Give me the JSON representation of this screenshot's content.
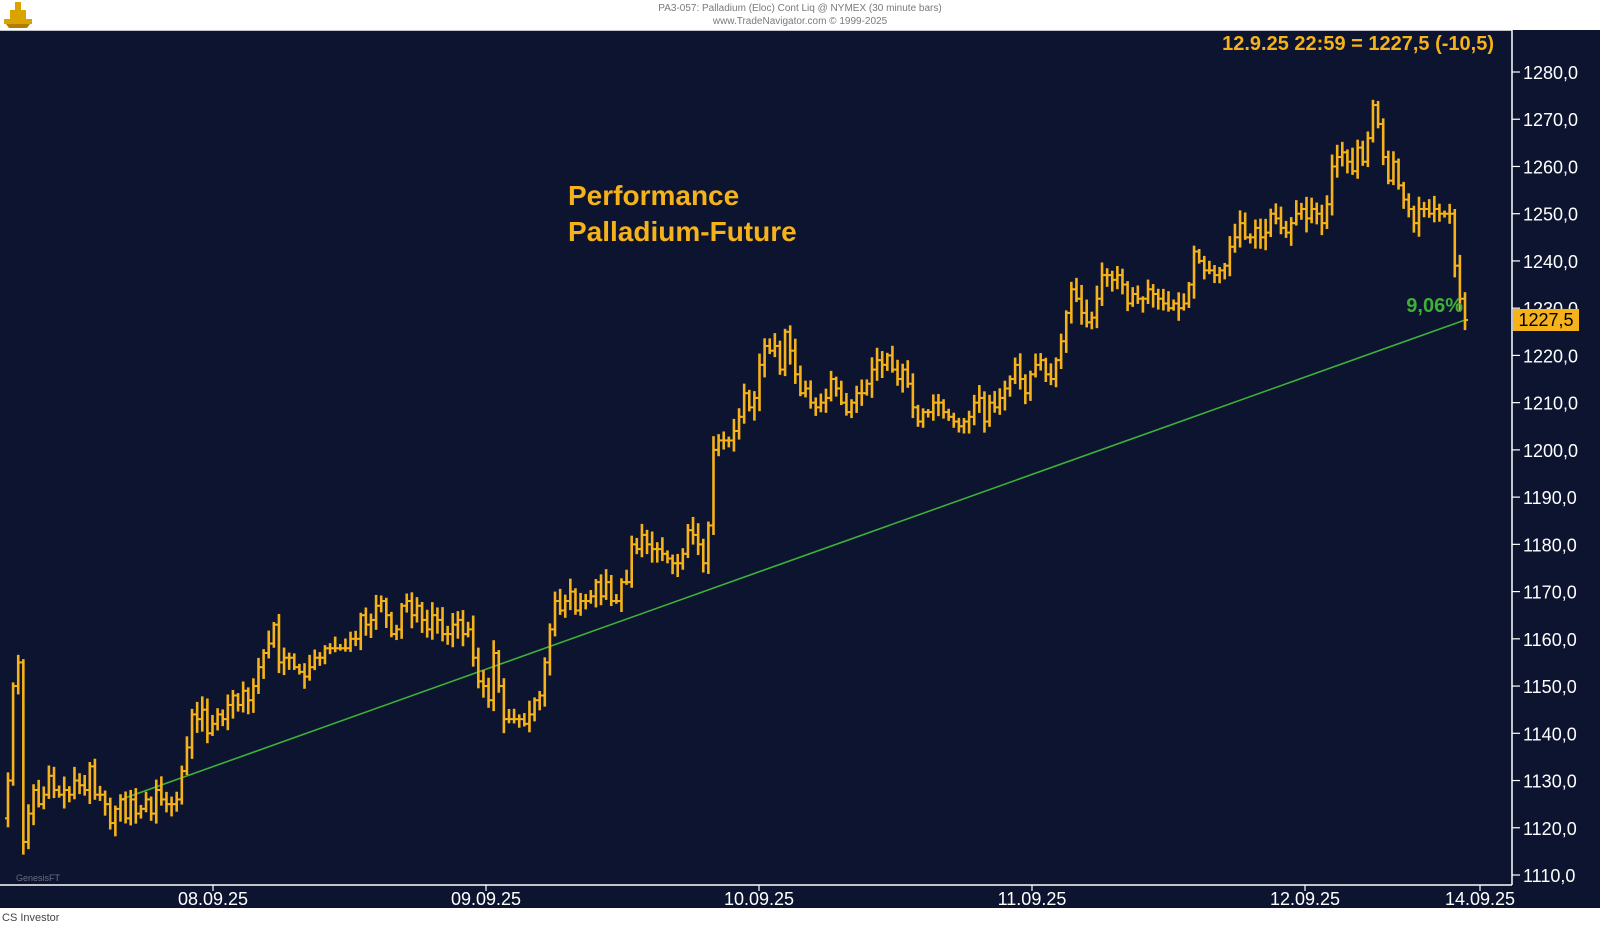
{
  "header": {
    "line1": "PA3-057:  Palladium (Eloc) Cont Liq @ NYMEX  (30 minute bars)",
    "line2": "www.TradeNavigator.com © 1999-2025"
  },
  "footer": {
    "left": "CS Investor"
  },
  "watermark": "GenesisFT",
  "colors": {
    "background": "#0d1430",
    "bars": "#f5b21a",
    "trend": "#3cb039",
    "axis": "#ffffff",
    "price_tag": "#f5b21a"
  },
  "chart_data": {
    "type": "ohlc",
    "title": "Performance",
    "subtitle": "Palladium-Future",
    "quote": "12.9.25 22:59 = 1227,5 (-10,5)",
    "last_price": "1227,5",
    "ylim": [
      1110,
      1290
    ],
    "yticks": [
      1110,
      1120,
      1130,
      1140,
      1150,
      1160,
      1170,
      1180,
      1190,
      1200,
      1210,
      1220,
      1230,
      1240,
      1250,
      1260,
      1270,
      1280
    ],
    "ytick_labels": [
      "1110,0",
      "1120,0",
      "1130,0",
      "1140,0",
      "1150,0",
      "1160,0",
      "1170,0",
      "1180,0",
      "1190,0",
      "1200,0",
      "1210,0",
      "1220,0",
      "1230,0",
      "1240,0",
      "1250,0",
      "1260,0",
      "1270,0",
      "1280,0"
    ],
    "xticks": [
      "08.09.25",
      "09.09.25",
      "10.09.25",
      "11.09.25",
      "12.09.25",
      "14.09.25"
    ],
    "trendline": {
      "from": {
        "date": "08.09.25",
        "value": 1126
      },
      "to": {
        "date": "12.09.25",
        "value": 1227.5
      },
      "label": "9,06%"
    },
    "series": [
      {
        "values": [
          1130,
          1150,
          1155,
          1117,
          1123,
          1128,
          1125,
          1127,
          1131,
          1128,
          1127,
          1128,
          1127,
          1130,
          1129,
          1128,
          1133,
          1127,
          1127,
          1125,
          1121,
          1124,
          1126,
          1122,
          1126,
          1123,
          1124,
          1126,
          1123,
          1128,
          1126,
          1125,
          1125,
          1126,
          1132,
          1137,
          1144,
          1143,
          1145,
          1140,
          1142,
          1144,
          1143,
          1146,
          1148,
          1146,
          1149,
          1147,
          1150,
          1154,
          1157,
          1159,
          1163,
          1155,
          1156,
          1156,
          1154,
          1153,
          1152,
          1154,
          1156,
          1156,
          1158,
          1158,
          1158,
          1158,
          1158,
          1160,
          1160,
          1165,
          1163,
          1164,
          1167,
          1168,
          1165,
          1161,
          1162,
          1167,
          1168,
          1165,
          1167,
          1164,
          1162,
          1165,
          1164,
          1161,
          1161,
          1163,
          1164,
          1161,
          1162,
          1156,
          1151,
          1150,
          1147,
          1157,
          1150,
          1143,
          1143,
          1143,
          1143,
          1142,
          1144,
          1147,
          1148,
          1155,
          1162,
          1168,
          1166,
          1168,
          1170,
          1166,
          1168,
          1168,
          1169,
          1172,
          1169,
          1172,
          1168,
          1168,
          1172,
          1172,
          1180,
          1179,
          1182,
          1180,
          1179,
          1179,
          1178,
          1177,
          1176,
          1176,
          1178,
          1183,
          1182,
          1180,
          1176,
          1184,
          1200,
          1202,
          1202,
          1202,
          1204,
          1207,
          1212,
          1209,
          1211,
          1218,
          1222,
          1221,
          1222,
          1217,
          1225,
          1221,
          1216,
          1212,
          1213,
          1210,
          1209,
          1210,
          1211,
          1215,
          1213,
          1210,
          1208,
          1210,
          1212,
          1212,
          1214,
          1217,
          1219,
          1218,
          1220,
          1217,
          1215,
          1217,
          1214,
          1209,
          1206,
          1208,
          1208,
          1210,
          1210,
          1208,
          1207,
          1206,
          1205,
          1206,
          1207,
          1210,
          1211,
          1206,
          1210,
          1209,
          1211,
          1213,
          1215,
          1218,
          1215,
          1212,
          1216,
          1218,
          1219,
          1216,
          1215,
          1219,
          1223,
          1229,
          1234,
          1232,
          1229,
          1227,
          1228,
          1232,
          1237,
          1237,
          1236,
          1237,
          1235,
          1231,
          1233,
          1232,
          1232,
          1234,
          1233,
          1232,
          1231,
          1230,
          1231,
          1230,
          1231,
          1235,
          1242,
          1240,
          1238,
          1238,
          1237,
          1238,
          1239,
          1243,
          1245,
          1248,
          1245,
          1245,
          1247,
          1245,
          1246,
          1250,
          1249,
          1247,
          1246,
          1248,
          1250,
          1251,
          1249,
          1251,
          1250,
          1248,
          1252,
          1260,
          1262,
          1263,
          1261,
          1259,
          1264,
          1261,
          1266,
          1273,
          1269,
          1262,
          1257,
          1261,
          1256,
          1253,
          1251,
          1248,
          1251,
          1251,
          1250,
          1251,
          1250,
          1250,
          1250,
          1239,
          1232,
          1227.5
        ]
      }
    ]
  }
}
